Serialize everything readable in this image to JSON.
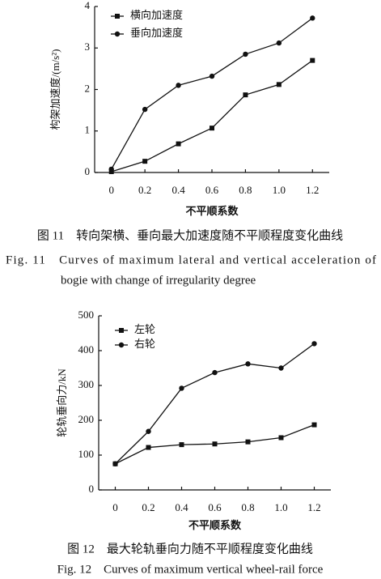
{
  "chart_data": [
    {
      "type": "line",
      "x_label": "不平顺系数",
      "y_label": "构架加速度/(m/s²)",
      "x": [
        0,
        0.2,
        0.4,
        0.6,
        0.8,
        1.0,
        1.2
      ],
      "xlim": [
        -0.1,
        1.3
      ],
      "xticks": [
        0,
        0.2,
        0.4,
        0.6,
        0.8,
        {
          "value": 1,
          "label": "1.0"
        },
        1.2
      ],
      "ylim": [
        0,
        4
      ],
      "yticks": [
        0,
        1,
        2,
        3,
        4
      ],
      "legend": "upper left",
      "series": [
        {
          "name": "横向加速度",
          "color": "#111111",
          "marker": "square",
          "values": [
            0.02,
            0.27,
            0.69,
            1.07,
            1.87,
            2.12,
            2.7
          ]
        },
        {
          "name": "垂向加速度",
          "color": "#111111",
          "marker": "circle",
          "values": [
            0.08,
            1.52,
            2.1,
            2.32,
            2.85,
            3.12,
            3.72
          ]
        }
      ]
    },
    {
      "type": "line",
      "x_label": "不平顺系数",
      "y_label": "轮轨垂向力/kN",
      "x": [
        0,
        0.2,
        0.4,
        0.6,
        0.8,
        1.0,
        1.2
      ],
      "xlim": [
        -0.1,
        1.3
      ],
      "xticks": [
        0,
        0.2,
        0.4,
        0.6,
        0.8,
        {
          "value": 1,
          "label": "1.0"
        },
        1.2
      ],
      "ylim": [
        0,
        500
      ],
      "yticks": [
        0,
        100,
        200,
        300,
        400,
        500
      ],
      "legend": "upper left",
      "series": [
        {
          "name": "左轮",
          "color": "#111111",
          "marker": "square",
          "values": [
            75,
            122,
            130,
            132,
            138,
            150,
            187
          ]
        },
        {
          "name": "右轮",
          "color": "#111111",
          "marker": "circle",
          "values": [
            75,
            168,
            292,
            337,
            362,
            350,
            420
          ]
        }
      ]
    }
  ],
  "captions": [
    {
      "zh": "图 11　转向架横、垂向最大加速度随不平顺程度变化曲线",
      "en": [
        "Fig. 11　Curves of maximum lateral and vertical acceleration of",
        "bogie with change of irregularity degree"
      ]
    },
    {
      "zh": "图 12　最大轮轨垂向力随不平顺程度变化曲线",
      "en": [
        "Fig. 12　Curves of maximum vertical wheel-rail force"
      ]
    }
  ]
}
